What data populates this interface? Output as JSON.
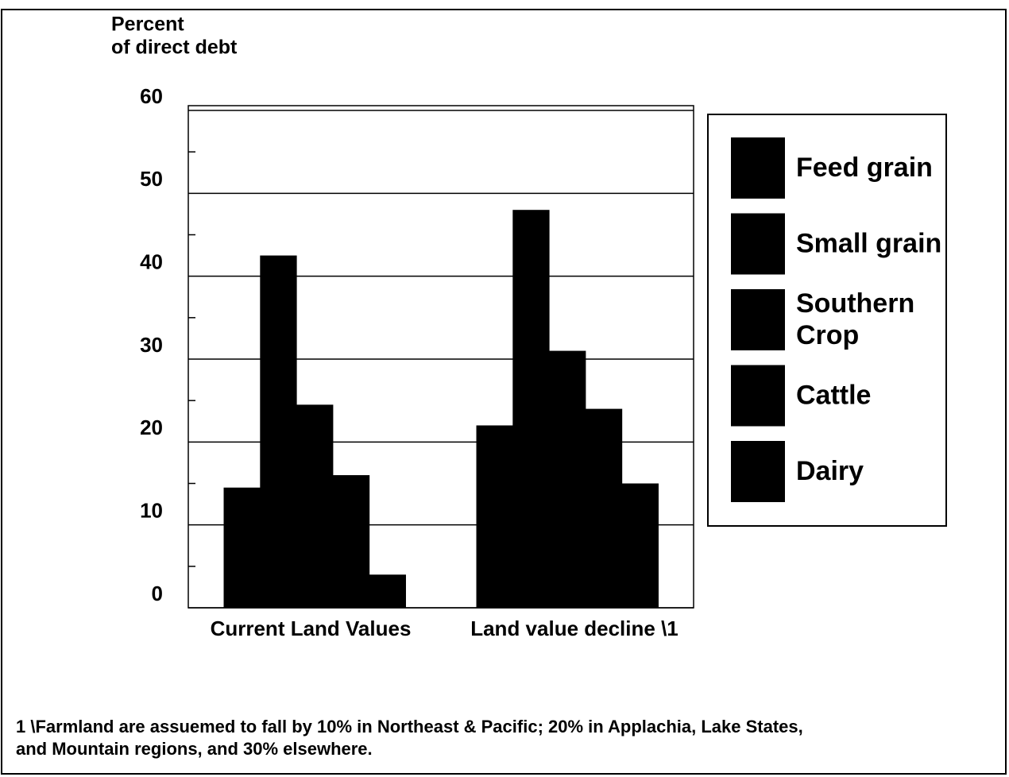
{
  "chart_data": {
    "type": "bar",
    "ylabel": [
      "Percent",
      "of direct debt"
    ],
    "categories": [
      "Current Land Values",
      "Land value decline \\1"
    ],
    "series": [
      {
        "name": "Feed grain",
        "color": "#000000",
        "values": [
          14.5,
          22
        ]
      },
      {
        "name": "Small grain",
        "color": "#000000",
        "values": [
          42.5,
          48
        ]
      },
      {
        "name": "Southern Crop",
        "color": "#000000",
        "values": [
          24.5,
          31
        ]
      },
      {
        "name": "Cattle",
        "color": "#000000",
        "values": [
          16,
          24
        ]
      },
      {
        "name": "Dairy",
        "color": "#000000",
        "values": [
          4,
          15
        ]
      }
    ],
    "ylim": [
      0,
      60
    ],
    "yticks": [
      0,
      10,
      20,
      30,
      40,
      50,
      60
    ],
    "yminorticks": [
      5,
      15,
      25,
      35,
      45,
      55
    ],
    "grid": true,
    "legend": "right",
    "footnote": [
      "1 \\Farmland are assuemed to fall by 10% in Northeast & Pacific; 20% in Applachia, Lake States,",
      "and Mountain regions, and 30% elsewhere."
    ]
  }
}
